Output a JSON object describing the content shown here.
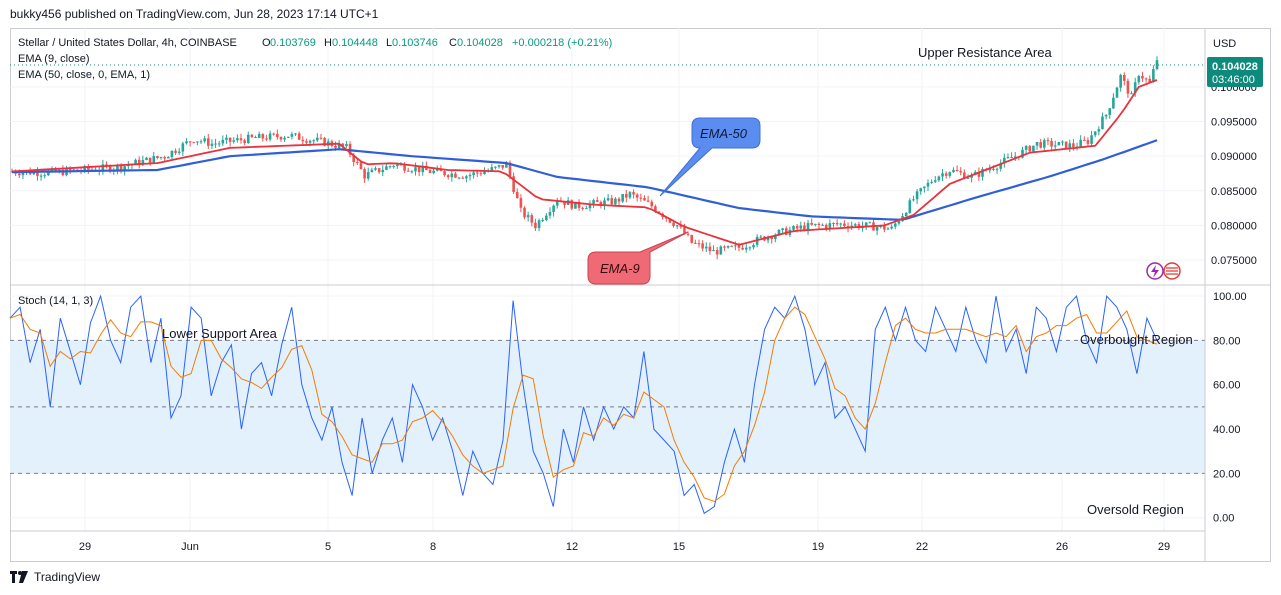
{
  "header": {
    "publisher_line": "bukky456 published on TradingView.com, Jun 28, 2023 17:14 UTC+1"
  },
  "legend": {
    "symbol": "Stellar / United States Dollar, 4h, COINBASE",
    "ohlc": {
      "O": "0.103769",
      "H": "0.104448",
      "L": "0.103746",
      "C": "0.104028"
    },
    "change": "+0.000218 (+0.21%)",
    "ema9_label": "EMA (9, close)",
    "ema50_label": "EMA (50, close, 0, EMA, 1)",
    "stoch_label": "Stoch (14, 1, 3)"
  },
  "price_axis": {
    "currency": "USD",
    "last_price": "0.104028",
    "countdown": "03:46:00"
  },
  "annotations": {
    "upper_resistance": "Upper Resistance Area",
    "lower_support": "Lower Support Area",
    "overbought": "Overbought Region",
    "oversold": "Oversold Region",
    "ema50_callout": "EMA-50",
    "ema9_callout": "EMA-9"
  },
  "footer": {
    "brand": "TradingView"
  },
  "colors": {
    "up": "#26a69a",
    "down": "#ef5350",
    "ema9": "#e8323c",
    "ema50": "#2f5fd6",
    "stoch_k": "#2962ff",
    "stoch_d": "#f57c00",
    "stoch_band": "#e3f1fc",
    "ema50_callout_fill": "#5b8df0",
    "ema9_callout_fill": "#f06a75"
  },
  "chart_data": [
    {
      "type": "candlestick",
      "title": "Stellar / United States Dollar, 4h, COINBASE",
      "x_tick_labels": [
        "29",
        "Jun",
        "5",
        "8",
        "12",
        "15",
        "19",
        "22",
        "26",
        "29"
      ],
      "y_tick_labels": [
        "0.100000",
        "0.095000",
        "0.090000",
        "0.085000",
        "0.080000",
        "0.075000"
      ],
      "y_ticks": [
        0.1,
        0.095,
        0.09,
        0.085,
        0.08,
        0.075
      ],
      "ylim": [
        0.0714,
        0.1085
      ],
      "close_path": [
        [
          0,
          0.0878
        ],
        [
          10,
          0.0876
        ],
        [
          20,
          0.088
        ],
        [
          30,
          0.0885
        ],
        [
          42,
          0.09
        ],
        [
          50,
          0.0925
        ],
        [
          55,
          0.0918
        ],
        [
          65,
          0.0925
        ],
        [
          76,
          0.093
        ],
        [
          86,
          0.092
        ],
        [
          92,
          0.0912
        ],
        [
          97,
          0.0872
        ],
        [
          105,
          0.0888
        ],
        [
          115,
          0.0878
        ],
        [
          125,
          0.0872
        ],
        [
          133,
          0.0882
        ],
        [
          136,
          0.0888
        ],
        [
          140,
          0.082
        ],
        [
          144,
          0.08
        ],
        [
          150,
          0.0838
        ],
        [
          155,
          0.0828
        ],
        [
          166,
          0.0835
        ],
        [
          170,
          0.0845
        ],
        [
          176,
          0.0828
        ],
        [
          183,
          0.08
        ],
        [
          187,
          0.0775
        ],
        [
          193,
          0.0762
        ],
        [
          200,
          0.0768
        ],
        [
          208,
          0.0785
        ],
        [
          218,
          0.0798
        ],
        [
          228,
          0.0802
        ],
        [
          238,
          0.0798
        ],
        [
          242,
          0.0795
        ],
        [
          248,
          0.0838
        ],
        [
          254,
          0.087
        ],
        [
          258,
          0.088
        ],
        [
          264,
          0.087
        ],
        [
          270,
          0.0885
        ],
        [
          276,
          0.09
        ],
        [
          282,
          0.0918
        ],
        [
          292,
          0.0915
        ],
        [
          296,
          0.0922
        ],
        [
          301,
          0.096
        ],
        [
          305,
          0.1015
        ],
        [
          308,
          0.0985
        ],
        [
          310,
          0.102
        ],
        [
          313,
          0.1005
        ],
        [
          315,
          0.104
        ]
      ],
      "ema9": [
        [
          0,
          0.0878
        ],
        [
          40,
          0.089
        ],
        [
          60,
          0.0912
        ],
        [
          90,
          0.0918
        ],
        [
          97,
          0.0888
        ],
        [
          105,
          0.089
        ],
        [
          120,
          0.088
        ],
        [
          135,
          0.0878
        ],
        [
          145,
          0.0838
        ],
        [
          160,
          0.083
        ],
        [
          175,
          0.0826
        ],
        [
          185,
          0.0798
        ],
        [
          200,
          0.0772
        ],
        [
          215,
          0.0792
        ],
        [
          240,
          0.08
        ],
        [
          248,
          0.0815
        ],
        [
          258,
          0.086
        ],
        [
          280,
          0.0905
        ],
        [
          298,
          0.0915
        ],
        [
          305,
          0.096
        ],
        [
          310,
          0.1
        ],
        [
          315,
          0.101
        ]
      ],
      "ema50": [
        [
          0,
          0.0877
        ],
        [
          40,
          0.088
        ],
        [
          60,
          0.09
        ],
        [
          90,
          0.091
        ],
        [
          110,
          0.09
        ],
        [
          136,
          0.089
        ],
        [
          150,
          0.087
        ],
        [
          175,
          0.0855
        ],
        [
          200,
          0.0825
        ],
        [
          220,
          0.0813
        ],
        [
          245,
          0.0808
        ],
        [
          265,
          0.084
        ],
        [
          285,
          0.087
        ],
        [
          300,
          0.0895
        ],
        [
          315,
          0.0923
        ]
      ],
      "annotations": [
        "Upper Resistance Area",
        "EMA-50",
        "EMA-9"
      ]
    },
    {
      "type": "line",
      "title": "Stoch (14, 1, 3)",
      "y_tick_labels": [
        "100.00",
        "80.00",
        "60.00",
        "40.00",
        "20.00",
        "0.00"
      ],
      "y_ticks": [
        100,
        80,
        60,
        40,
        20,
        0
      ],
      "ylim": [
        -6,
        105
      ],
      "overbought_level": 80,
      "oversold_level": 20,
      "middle_level": 50,
      "k_path": [
        [
          0,
          90
        ],
        [
          4,
          95
        ],
        [
          8,
          70
        ],
        [
          12,
          85
        ],
        [
          16,
          50
        ],
        [
          20,
          90
        ],
        [
          24,
          75
        ],
        [
          28,
          60
        ],
        [
          32,
          88
        ],
        [
          36,
          100
        ],
        [
          40,
          80
        ],
        [
          44,
          70
        ],
        [
          48,
          95
        ],
        [
          52,
          100
        ],
        [
          56,
          70
        ],
        [
          60,
          90
        ],
        [
          64,
          45
        ],
        [
          68,
          55
        ],
        [
          72,
          95
        ],
        [
          76,
          90
        ],
        [
          80,
          55
        ],
        [
          84,
          70
        ],
        [
          88,
          78
        ],
        [
          92,
          40
        ],
        [
          96,
          65
        ],
        [
          100,
          70
        ],
        [
          104,
          55
        ],
        [
          108,
          78
        ],
        [
          112,
          95
        ],
        [
          116,
          60
        ],
        [
          120,
          45
        ],
        [
          124,
          35
        ],
        [
          128,
          50
        ],
        [
          132,
          25
        ],
        [
          136,
          10
        ],
        [
          140,
          45
        ],
        [
          144,
          20
        ],
        [
          148,
          35
        ],
        [
          152,
          45
        ],
        [
          156,
          25
        ],
        [
          160,
          60
        ],
        [
          164,
          50
        ],
        [
          168,
          35
        ],
        [
          172,
          45
        ],
        [
          176,
          30
        ],
        [
          180,
          10
        ],
        [
          184,
          30
        ],
        [
          188,
          20
        ],
        [
          192,
          15
        ],
        [
          196,
          35
        ],
        [
          200,
          98
        ],
        [
          204,
          60
        ],
        [
          208,
          30
        ],
        [
          212,
          20
        ],
        [
          216,
          5
        ],
        [
          220,
          40
        ],
        [
          224,
          25
        ],
        [
          228,
          50
        ],
        [
          232,
          35
        ],
        [
          236,
          50
        ],
        [
          240,
          40
        ],
        [
          244,
          50
        ],
        [
          248,
          45
        ],
        [
          252,
          75
        ],
        [
          256,
          40
        ],
        [
          260,
          35
        ],
        [
          264,
          30
        ],
        [
          268,
          10
        ],
        [
          272,
          15
        ],
        [
          276,
          2
        ],
        [
          280,
          5
        ],
        [
          284,
          25
        ],
        [
          288,
          40
        ],
        [
          292,
          25
        ],
        [
          296,
          60
        ],
        [
          300,
          85
        ],
        [
          304,
          95
        ],
        [
          308,
          90
        ],
        [
          312,
          100
        ],
        [
          316,
          85
        ],
        [
          320,
          60
        ],
        [
          324,
          70
        ],
        [
          328,
          45
        ],
        [
          332,
          50
        ],
        [
          336,
          40
        ],
        [
          340,
          30
        ],
        [
          344,
          85
        ],
        [
          348,
          95
        ],
        [
          352,
          80
        ],
        [
          356,
          95
        ],
        [
          360,
          80
        ],
        [
          364,
          75
        ],
        [
          368,
          95
        ],
        [
          372,
          85
        ],
        [
          376,
          75
        ],
        [
          380,
          95
        ],
        [
          384,
          80
        ],
        [
          388,
          70
        ],
        [
          392,
          100
        ],
        [
          396,
          75
        ],
        [
          400,
          85
        ],
        [
          404,
          65
        ],
        [
          408,
          95
        ],
        [
          412,
          90
        ],
        [
          416,
          75
        ],
        [
          420,
          95
        ],
        [
          424,
          100
        ],
        [
          428,
          80
        ],
        [
          432,
          70
        ],
        [
          436,
          100
        ],
        [
          440,
          95
        ],
        [
          444,
          85
        ],
        [
          448,
          65
        ],
        [
          452,
          90
        ],
        [
          456,
          80
        ]
      ],
      "annotations": [
        "Lower Support Area",
        "Overbought Region",
        "Oversold Region"
      ]
    }
  ]
}
